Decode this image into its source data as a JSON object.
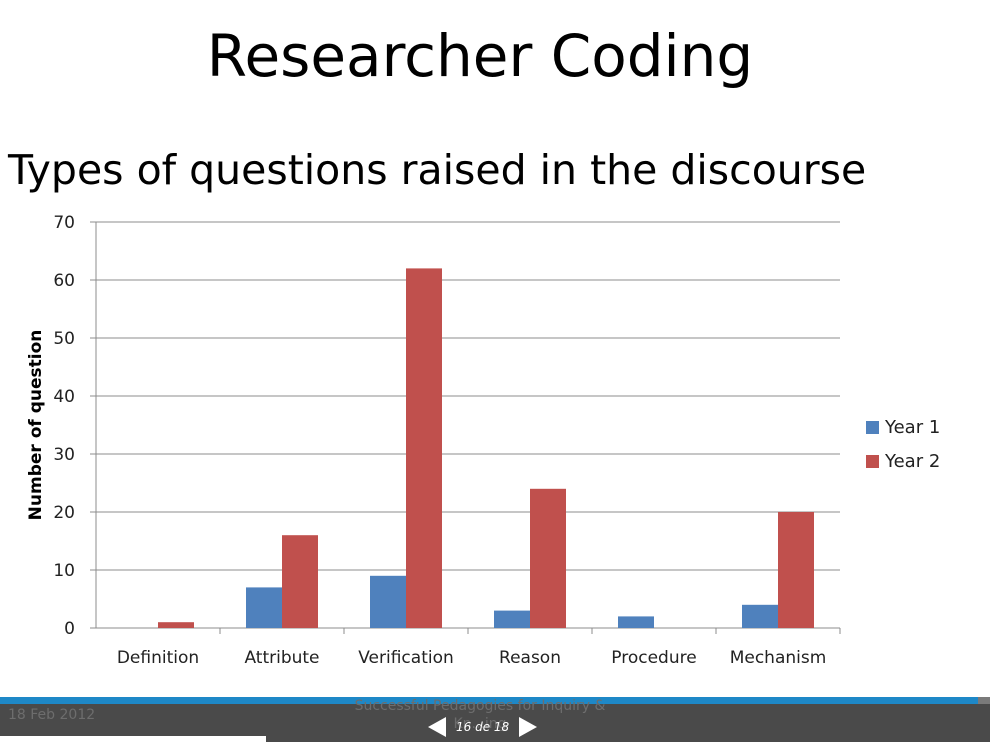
{
  "slide": {
    "title": "Researcher Coding",
    "subtitle": "Types of questions raised in the discourse"
  },
  "chart_data": {
    "type": "bar",
    "title": "",
    "xlabel": "",
    "ylabel": "Number of question",
    "ylim": [
      0,
      70
    ],
    "yticks": [
      "0",
      "10",
      "20",
      "30",
      "40",
      "50",
      "60",
      "70"
    ],
    "categories": [
      "Definition",
      "Attribute",
      "Verification",
      "Reason",
      "Procedure",
      "Mechanism"
    ],
    "series": [
      {
        "name": "Year 1",
        "color": "#4f81bd",
        "values": [
          0,
          7,
          9,
          3,
          2,
          4
        ]
      },
      {
        "name": "Year 2",
        "color": "#c0504d",
        "values": [
          1,
          16,
          62,
          24,
          0,
          20
        ]
      }
    ],
    "grid": true,
    "legend_position": "right"
  },
  "footer": {
    "date": "18 Feb 2012",
    "text": "Successful Pedagogies for Inquiry & Kn...ing",
    "page_label": "16 de 18"
  }
}
